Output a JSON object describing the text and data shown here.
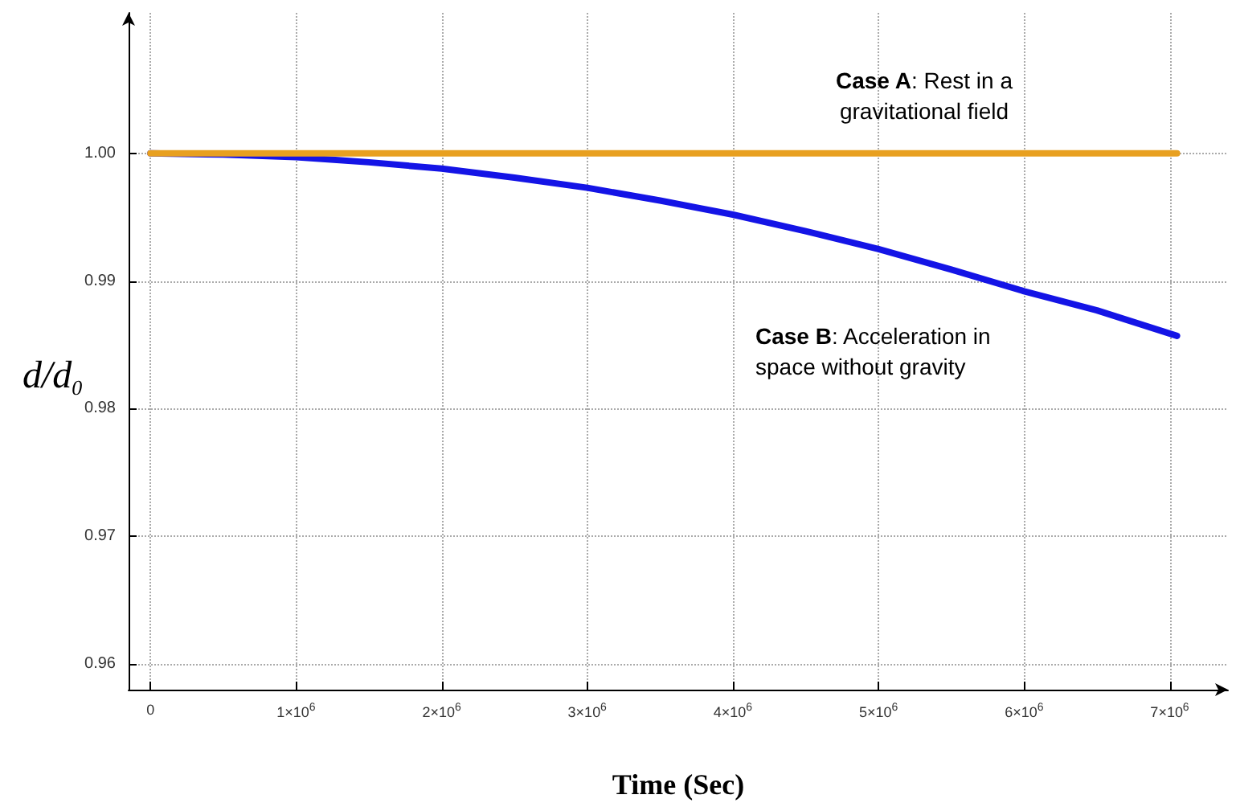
{
  "chart_data": {
    "type": "line",
    "xlabel": "Time (Sec)",
    "ylabel": "d/d$_{0}$",
    "xlim": [
      -150000,
      7400000
    ],
    "ylim": [
      0.958,
      1.011
    ],
    "xticks": [
      {
        "value": 0,
        "label": "0"
      },
      {
        "value": 1000000,
        "label": "1×10$^{6}$"
      },
      {
        "value": 2000000,
        "label": "2×10$^{6}$"
      },
      {
        "value": 3000000,
        "label": "3×10$^{6}$"
      },
      {
        "value": 4000000,
        "label": "4×10$^{6}$"
      },
      {
        "value": 5000000,
        "label": "5×10$^{6}$"
      },
      {
        "value": 6000000,
        "label": "6×10$^{6}$"
      },
      {
        "value": 7000000,
        "label": "7×10$^{6}$"
      }
    ],
    "yticks": [
      {
        "value": 0.96,
        "label": "0.96"
      },
      {
        "value": 0.97,
        "label": "0.97"
      },
      {
        "value": 0.98,
        "label": "0.98"
      },
      {
        "value": 0.99,
        "label": "0.99"
      },
      {
        "value": 1.0,
        "label": "1.00"
      }
    ],
    "grid": true,
    "marker": "none",
    "line_style": "solid",
    "series": [
      {
        "color": "#e8a020",
        "x": [
          0,
          1000000,
          2000000,
          3000000,
          4000000,
          5000000,
          6000000,
          7050000
        ],
        "values": [
          1,
          1,
          1,
          1,
          1,
          1,
          1,
          1
        ]
      },
      {
        "color": "#1414e6",
        "x": [
          0,
          500000,
          1000000,
          1500000,
          2000000,
          2500000,
          3000000,
          3500000,
          4000000,
          4500000,
          5000000,
          5500000,
          6000000,
          6500000,
          7050000
        ],
        "values": [
          1,
          0.9999,
          0.9997,
          0.9993,
          0.9988,
          0.9981,
          0.9973,
          0.9963,
          0.9952,
          0.9939,
          0.9925,
          0.9909,
          0.9892,
          0.9877,
          0.9857
        ]
      }
    ],
    "annotations": [
      "Case A: Rest in a gravitational field",
      "Case B: Acceleration in space without gravity"
    ]
  }
}
